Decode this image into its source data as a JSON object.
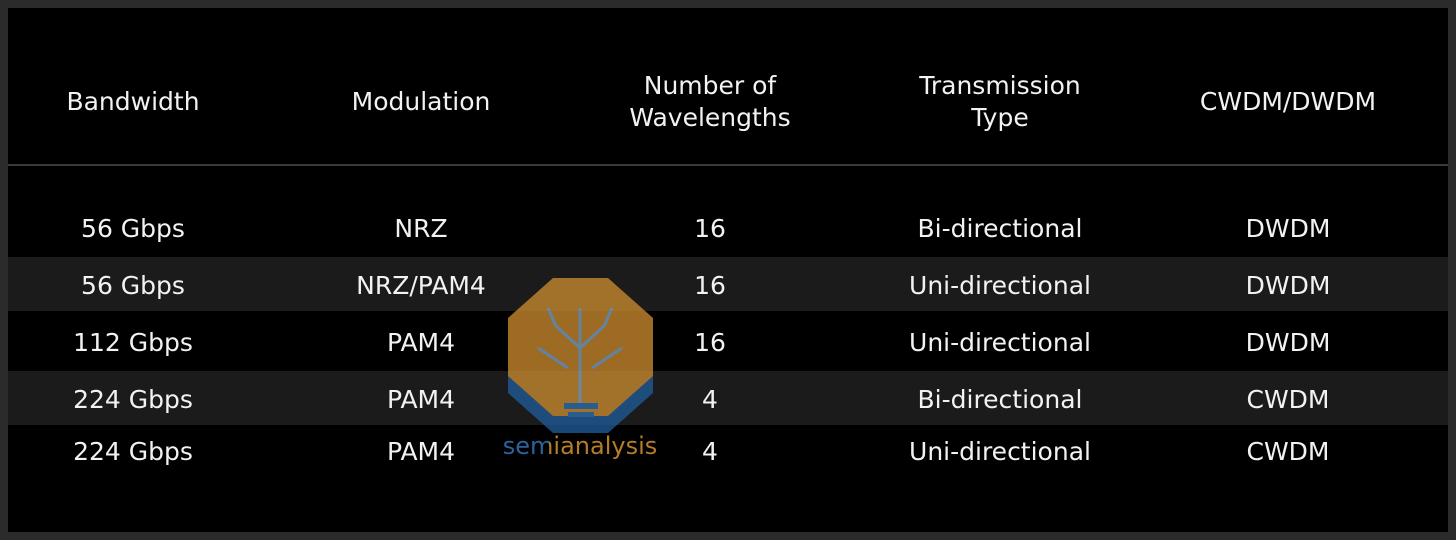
{
  "table": {
    "header": [
      "Bandwidth",
      "Modulation",
      "Number of Wavelengths",
      "Transmission Type",
      "CWDM/DWDM"
    ],
    "rows": [
      [
        "56 Gbps",
        "NRZ",
        16,
        "Bi-directional",
        "DWDM"
      ],
      [
        "56 Gbps",
        "NRZ/PAM4",
        16,
        "Uni-directional",
        "DWDM"
      ],
      [
        "112 Gbps",
        "PAM4",
        16,
        "Uni-directional",
        "DWDM"
      ],
      [
        "224 Gbps",
        "PAM4",
        4,
        "Bi-directional",
        "CWDM"
      ],
      [
        "224 Gbps",
        "PAM4",
        4,
        "Uni-directional",
        "CWDM"
      ]
    ]
  },
  "watermark": {
    "text": "semianalysis"
  }
}
